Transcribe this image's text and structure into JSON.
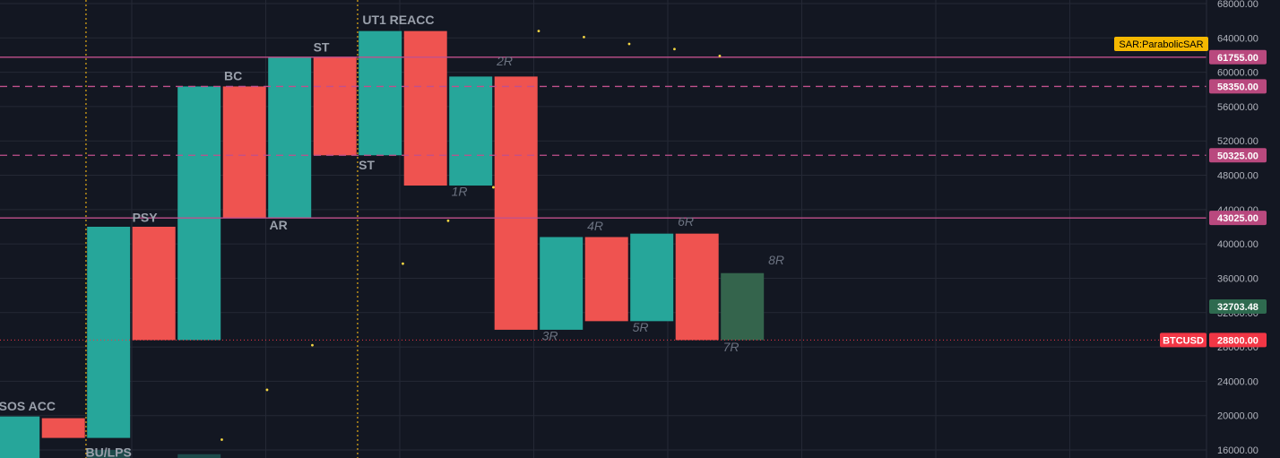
{
  "chart_data": {
    "type": "renko",
    "symbol": "BTCUSD",
    "indicator_label": "SAR:ParabolicSAR",
    "ylim": [
      14000,
      70000
    ],
    "xlim": [
      0,
      28.5
    ],
    "y_ticks": [
      16000,
      20000,
      24000,
      28000,
      32000,
      36000,
      40000,
      44000,
      48000,
      52000,
      56000,
      60000,
      64000,
      68000
    ],
    "y_tick_labels": [
      "16000.00",
      "20000.00",
      "24000.00",
      "28000.00",
      "32000.00",
      "36000.00",
      "40000.00",
      "44000.00",
      "48000.00",
      "52000.00",
      "56000.00",
      "60000.00",
      "64000.00",
      "68000.00"
    ],
    "bricks": [
      {
        "i": 0.4,
        "open": 14000,
        "close": 19900,
        "dir": "up"
      },
      {
        "i": 1.4,
        "open": 19700,
        "close": 17400,
        "dir": "down"
      },
      {
        "i": 2.4,
        "open": 17400,
        "close": 42000,
        "dir": "up"
      },
      {
        "i": 3.4,
        "open": 42000,
        "close": 28800,
        "dir": "down"
      },
      {
        "i": 4.4,
        "open": 28800,
        "close": 58350,
        "dir": "up"
      },
      {
        "i": 5.4,
        "open": 58350,
        "close": 43025,
        "dir": "down"
      },
      {
        "i": 6.4,
        "open": 43025,
        "close": 61755,
        "dir": "up"
      },
      {
        "i": 7.4,
        "open": 61755,
        "close": 50325,
        "dir": "down"
      },
      {
        "i": 8.4,
        "open": 50325,
        "close": 64800,
        "dir": "up"
      },
      {
        "i": 9.4,
        "open": 64800,
        "close": 46800,
        "dir": "down"
      },
      {
        "i": 10.4,
        "open": 46800,
        "close": 59500,
        "dir": "up"
      },
      {
        "i": 11.4,
        "open": 59500,
        "close": 30000,
        "dir": "down"
      },
      {
        "i": 12.4,
        "open": 30000,
        "close": 40800,
        "dir": "up"
      },
      {
        "i": 13.4,
        "open": 40800,
        "close": 31000,
        "dir": "down"
      },
      {
        "i": 14.4,
        "open": 31000,
        "close": 41200,
        "dir": "up"
      },
      {
        "i": 15.4,
        "open": 41200,
        "close": 28800,
        "dir": "down"
      },
      {
        "i": 16.4,
        "open": 28800,
        "close": 36600,
        "dir": "up",
        "current": true
      }
    ],
    "ghost_bricks": [
      {
        "i": 2.4,
        "open": 14000,
        "close": 16000
      },
      {
        "i": 4.4,
        "open": 14000,
        "close": 15500
      }
    ],
    "sar_points": [
      {
        "i": 4.9,
        "y": 17200
      },
      {
        "i": 5.9,
        "y": 23000
      },
      {
        "i": 6.9,
        "y": 28200
      },
      {
        "i": 8.9,
        "y": 37700
      },
      {
        "i": 9.9,
        "y": 42700
      },
      {
        "i": 10.9,
        "y": 46600
      },
      {
        "i": 11.9,
        "y": 64800
      },
      {
        "i": 12.9,
        "y": 64100
      },
      {
        "i": 13.9,
        "y": 63300
      },
      {
        "i": 14.9,
        "y": 62700
      },
      {
        "i": 15.9,
        "y": 61900
      }
    ],
    "price_lines": [
      {
        "price": 61755,
        "label": "61755.00",
        "style": "solid"
      },
      {
        "price": 58350,
        "label": "58350.00",
        "style": "dashed"
      },
      {
        "price": 50325,
        "label": "50325.00",
        "style": "dashed"
      },
      {
        "price": 43025,
        "label": "43025.00",
        "style": "solid"
      }
    ],
    "last_price": {
      "price": 28800,
      "label": "28800.00"
    },
    "current_price": {
      "price": 32703.48,
      "label": "32703.48"
    },
    "vertical_lines_x": [
      1.9,
      7.9
    ],
    "wyckoff_labels": [
      {
        "text": "SOS ACC",
        "i": 0.6,
        "y": 20600
      },
      {
        "text": "BU/LPS",
        "i": 2.4,
        "y": 15200
      },
      {
        "text": "PSY",
        "i": 3.2,
        "y": 42600
      },
      {
        "text": "BC",
        "i": 5.15,
        "y": 59050
      },
      {
        "text": "AR",
        "i": 6.15,
        "y": 41700
      },
      {
        "text": "ST",
        "i": 7.1,
        "y": 62400
      },
      {
        "text": "ST",
        "i": 8.1,
        "y": 48700
      },
      {
        "text": "UT1 REACC",
        "i": 8.8,
        "y": 65600
      }
    ],
    "count_labels": [
      {
        "text": "1R",
        "i": 10.15,
        "y": 45600
      },
      {
        "text": "2R",
        "i": 11.15,
        "y": 60800
      },
      {
        "text": "3R",
        "i": 12.15,
        "y": 28800
      },
      {
        "text": "4R",
        "i": 13.15,
        "y": 41600
      },
      {
        "text": "5R",
        "i": 14.15,
        "y": 29800
      },
      {
        "text": "6R",
        "i": 15.15,
        "y": 42100
      },
      {
        "text": "7R",
        "i": 16.15,
        "y": 27500
      },
      {
        "text": "8R",
        "i": 17.15,
        "y": 37600
      }
    ],
    "colors": {
      "up": "#26a69a",
      "down": "#ef5350",
      "current": "#34644c",
      "ghost": "#1d4a4a",
      "price_line": "#c0508c",
      "price_badge": "#b9497e",
      "last_badge": "#f23645",
      "current_badge": "#2e6a4f",
      "indicator_badge": "#f5b800",
      "sar": "#f5d742",
      "vline": "#d4a017",
      "grid": "#242835",
      "background": "#131722"
    }
  }
}
